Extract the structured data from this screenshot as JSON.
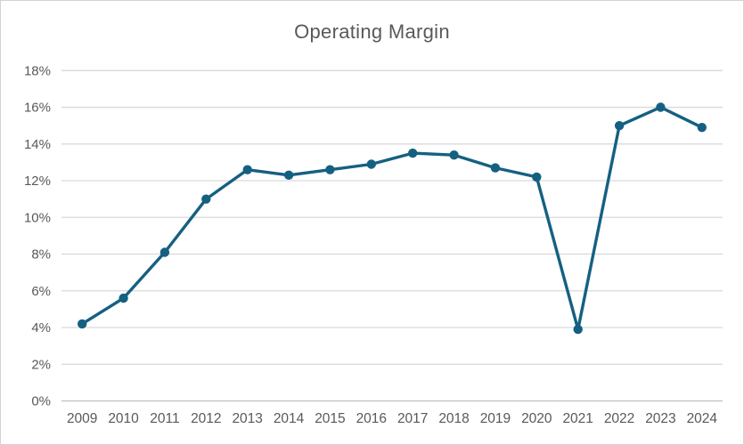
{
  "chart_data": {
    "type": "line",
    "title": "Operating Margin",
    "categories": [
      "2009",
      "2010",
      "2011",
      "2012",
      "2013",
      "2014",
      "2015",
      "2016",
      "2017",
      "2018",
      "2019",
      "2020",
      "2021",
      "2022",
      "2023",
      "2024"
    ],
    "series": [
      {
        "name": "Operating Margin",
        "values": [
          4.2,
          5.6,
          8.1,
          11.0,
          12.6,
          12.3,
          12.6,
          12.9,
          13.5,
          13.4,
          12.7,
          12.2,
          3.9,
          15.0,
          16.0,
          14.9
        ]
      }
    ],
    "xlabel": "",
    "ylabel": "",
    "ylim": [
      0,
      18
    ],
    "ytick_step": 2,
    "ytick_labels": [
      "0%",
      "2%",
      "4%",
      "6%",
      "8%",
      "10%",
      "12%",
      "14%",
      "16%",
      "18%"
    ],
    "grid": true,
    "legend_position": "none",
    "colors": {
      "line": "#156082",
      "marker": "#156082",
      "gridline": "#d9d9d9",
      "axis_line": "#bfbfbf",
      "text": "#595959",
      "title_text": "#595959",
      "background": "#ffffff",
      "frame_border": "#d3d3d3"
    }
  }
}
